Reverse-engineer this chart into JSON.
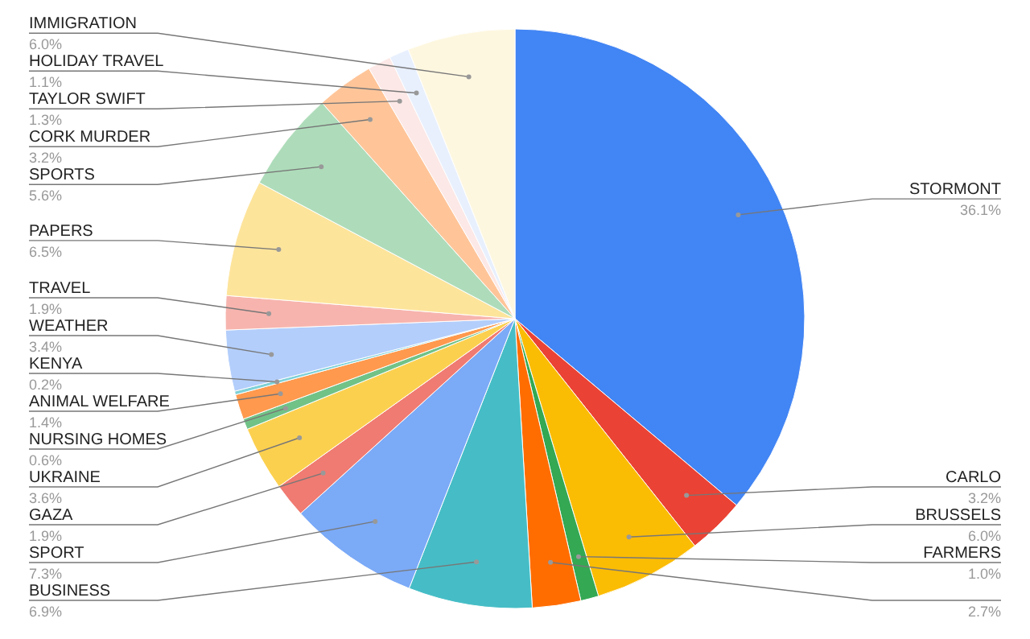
{
  "chart_data": {
    "type": "pie",
    "categories": [
      "STORMONT",
      "CARLO",
      "BRUSSELS",
      "FARMERS",
      null,
      "BUSINESS",
      "SPORT",
      "GAZA",
      "UKRAINE",
      "NURSING HOMES",
      "ANIMAL WELFARE",
      "KENYA",
      "WEATHER",
      "TRAVEL",
      "PAPERS",
      "SPORTS",
      "CORK MURDER",
      "TAYLOR SWIFT",
      "HOLIDAY TRAVEL",
      "IMMIGRATION"
    ],
    "values": [
      36.1,
      3.2,
      6.0,
      1.0,
      2.7,
      6.9,
      7.3,
      1.9,
      3.6,
      0.6,
      1.4,
      0.2,
      3.4,
      1.9,
      6.5,
      5.6,
      3.2,
      1.3,
      1.1,
      6.0
    ],
    "value_labels": [
      "36.1%",
      "3.2%",
      "6.0%",
      "1.0%",
      "2.7%",
      "6.9%",
      "7.3%",
      "1.9%",
      "3.6%",
      "0.6%",
      "1.4%",
      "0.2%",
      "3.4%",
      "1.9%",
      "6.5%",
      "5.6%",
      "3.2%",
      "1.3%",
      "1.1%",
      "6.0%"
    ],
    "colors": [
      "#4285f4",
      "#ea4335",
      "#fbbc04",
      "#34a853",
      "#ff6d01",
      "#46bdc6",
      "#7baaf7",
      "#f07b72",
      "#fcd04f",
      "#71c287",
      "#ff994d",
      "#7ed1d7",
      "#b3cefb",
      "#f7b4ae",
      "#fde49b",
      "#aedcba",
      "#ffc599",
      "#fce8e6",
      "#e8f0fe",
      "#fef7e0"
    ]
  }
}
